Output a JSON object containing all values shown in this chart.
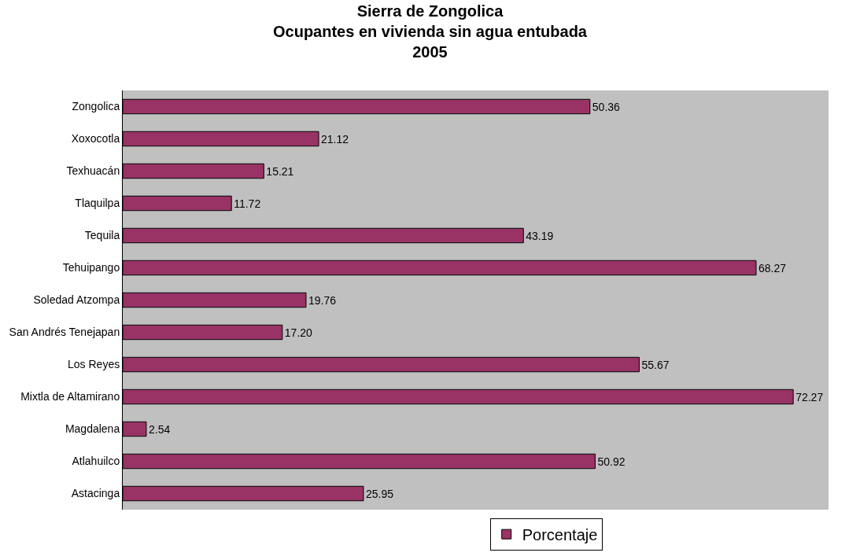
{
  "chart_data": {
    "type": "bar",
    "orientation": "horizontal",
    "title": "Sierra de Zongolica\nOcupantes en vivienda sin agua entubada\n2005",
    "categories": [
      "Zongolica",
      "Xoxocotla",
      "Texhuacán",
      "Tlaquilpa",
      "Tequila",
      "Tehuipango",
      "Soledad Atzompa",
      "San Andrés Tenejapan",
      "Los Reyes",
      "Mixtla de Altamirano",
      "Magdalena",
      "Atlahuilco",
      "Astacinga"
    ],
    "series": [
      {
        "name": "Porcentaje",
        "color": "#993366",
        "values": [
          50.36,
          21.12,
          15.21,
          11.72,
          43.19,
          68.27,
          19.76,
          17.2,
          55.67,
          72.27,
          2.54,
          50.92,
          25.95
        ],
        "value_labels": [
          "50.36",
          "21.12",
          "15.21",
          "11.72",
          "43.19",
          "68.27",
          "19.76",
          "17.20",
          "55.67",
          "72.27",
          "2.54",
          "50.92",
          "25.95"
        ]
      }
    ],
    "grid": false,
    "legend": "bottom",
    "tick_labels": "y"
  }
}
